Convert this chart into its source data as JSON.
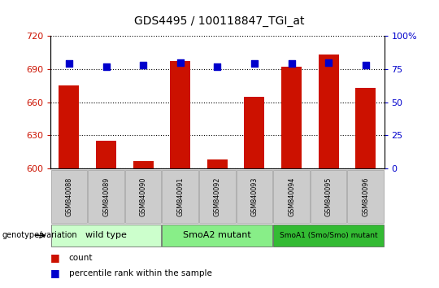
{
  "title": "GDS4495 / 100118847_TGI_at",
  "samples": [
    "GSM840088",
    "GSM840089",
    "GSM840090",
    "GSM840091",
    "GSM840092",
    "GSM840093",
    "GSM840094",
    "GSM840095",
    "GSM840096"
  ],
  "counts": [
    675,
    625,
    607,
    697,
    608,
    665,
    692,
    703,
    673
  ],
  "percentiles": [
    79,
    77,
    78,
    80,
    77,
    79,
    79,
    80,
    78
  ],
  "ylim": [
    600,
    720
  ],
  "yticks": [
    600,
    630,
    660,
    690,
    720
  ],
  "y2lim": [
    0,
    100
  ],
  "y2ticks": [
    0,
    25,
    50,
    75,
    100
  ],
  "y2ticklabels": [
    "0",
    "25",
    "50",
    "75",
    "100%"
  ],
  "bar_color": "#cc1100",
  "dot_color": "#0000cc",
  "groups": [
    {
      "label": "wild type",
      "start": 0,
      "end": 3,
      "color": "#ccffcc"
    },
    {
      "label": "SmoA2 mutant",
      "start": 3,
      "end": 6,
      "color": "#88ee88"
    },
    {
      "label": "SmoA1 (Smo/Smo) mutant",
      "start": 6,
      "end": 9,
      "color": "#33bb33"
    }
  ],
  "bar_width": 0.55,
  "dot_size": 40,
  "ylabel_color": "#cc1100",
  "y2label_color": "#0000cc",
  "background_color": "#ffffff"
}
